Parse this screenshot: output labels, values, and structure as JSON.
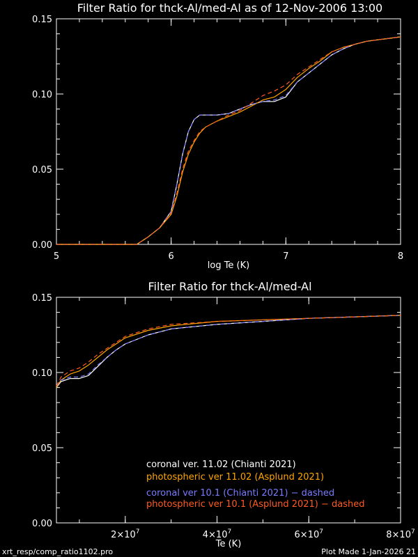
{
  "colors": {
    "background": "#000000",
    "axes": "#ffffff",
    "coronal_11": "#ffffff",
    "photospheric_11": "#ffa500",
    "coronal_10": "#7b7bff",
    "photospheric_10": "#ff5a1f"
  },
  "chart_data": [
    {
      "type": "line",
      "title": "Filter Ratio for thck-Al/med-Al as of 12-Nov-2006 13:00",
      "xlabel": "log Te (K)",
      "ylabel": "",
      "xlim": [
        5,
        8
      ],
      "ylim": [
        0,
        0.15
      ],
      "xticks": [
        "5",
        "6",
        "7",
        "8"
      ],
      "yticks": [
        "0.00",
        "0.05",
        "0.10",
        "0.15"
      ],
      "series": [
        {
          "name": "coronal ver. 11.02 (Chianti 2021)",
          "color": "#ffffff",
          "dashed": false,
          "x": [
            5.0,
            5.7,
            5.8,
            5.9,
            6.0,
            6.05,
            6.1,
            6.15,
            6.2,
            6.25,
            6.3,
            6.4,
            6.5,
            6.6,
            6.7,
            6.8,
            6.9,
            7.0,
            7.1,
            7.2,
            7.3,
            7.4,
            7.5,
            7.6,
            7.7,
            7.8,
            7.9,
            8.0
          ],
          "y": [
            0,
            0,
            0.005,
            0.011,
            0.022,
            0.04,
            0.06,
            0.075,
            0.083,
            0.086,
            0.086,
            0.086,
            0.087,
            0.09,
            0.093,
            0.095,
            0.095,
            0.098,
            0.108,
            0.114,
            0.12,
            0.126,
            0.13,
            0.133,
            0.135,
            0.136,
            0.137,
            0.138
          ]
        },
        {
          "name": "photospheric ver 11.02 (Asplund 2021)",
          "color": "#ffa500",
          "dashed": false,
          "x": [
            5.0,
            5.7,
            5.8,
            5.9,
            6.0,
            6.05,
            6.1,
            6.15,
            6.2,
            6.25,
            6.3,
            6.4,
            6.5,
            6.6,
            6.7,
            6.8,
            6.9,
            7.0,
            7.1,
            7.2,
            7.3,
            7.4,
            7.5,
            7.6,
            7.7,
            7.8,
            7.9,
            8.0
          ],
          "y": [
            0,
            0,
            0.005,
            0.011,
            0.02,
            0.032,
            0.048,
            0.06,
            0.068,
            0.074,
            0.078,
            0.082,
            0.085,
            0.088,
            0.092,
            0.096,
            0.098,
            0.103,
            0.111,
            0.117,
            0.122,
            0.128,
            0.131,
            0.133,
            0.135,
            0.136,
            0.137,
            0.138
          ]
        },
        {
          "name": "coronal ver 10.1 (Chianti 2021) − dashed",
          "color": "#7b7bff",
          "dashed": true,
          "x": [
            5.0,
            5.7,
            5.8,
            5.9,
            6.0,
            6.05,
            6.1,
            6.15,
            6.2,
            6.25,
            6.3,
            6.4,
            6.5,
            6.6,
            6.7,
            6.8,
            6.9,
            7.0,
            7.1,
            7.2,
            7.3,
            7.4,
            7.5,
            7.6,
            7.7,
            7.8,
            7.9,
            8.0
          ],
          "y": [
            0,
            0,
            0.005,
            0.011,
            0.022,
            0.04,
            0.06,
            0.075,
            0.083,
            0.086,
            0.086,
            0.086,
            0.087,
            0.09,
            0.093,
            0.095,
            0.096,
            0.099,
            0.108,
            0.114,
            0.12,
            0.126,
            0.13,
            0.133,
            0.135,
            0.136,
            0.137,
            0.138
          ]
        },
        {
          "name": "photospheric ver 10.1 (Asplund 2021) − dashed",
          "color": "#ff5a1f",
          "dashed": true,
          "x": [
            5.0,
            5.7,
            5.8,
            5.9,
            6.0,
            6.05,
            6.1,
            6.15,
            6.2,
            6.25,
            6.3,
            6.4,
            6.5,
            6.6,
            6.7,
            6.8,
            6.9,
            7.0,
            7.1,
            7.2,
            7.3,
            7.4,
            7.5,
            7.6,
            7.7,
            7.8,
            7.9,
            8.0
          ],
          "y": [
            0,
            0,
            0.005,
            0.011,
            0.021,
            0.034,
            0.05,
            0.062,
            0.069,
            0.075,
            0.078,
            0.082,
            0.086,
            0.089,
            0.094,
            0.099,
            0.102,
            0.106,
            0.113,
            0.118,
            0.123,
            0.128,
            0.131,
            0.133,
            0.135,
            0.136,
            0.137,
            0.138
          ]
        }
      ]
    },
    {
      "type": "line",
      "title": "Filter Ratio for thck-Al/med-Al",
      "xlabel": "Te (K)",
      "ylabel": "",
      "xlim": [
        5000000,
        80000000
      ],
      "ylim": [
        0,
        0.15
      ],
      "xticks": [
        {
          "value": 20000000,
          "mantissa": "2×10",
          "exp": "7"
        },
        {
          "value": 40000000,
          "mantissa": "4×10",
          "exp": "7"
        },
        {
          "value": 60000000,
          "mantissa": "6×10",
          "exp": "7"
        },
        {
          "value": 80000000,
          "mantissa": "8×10",
          "exp": "7"
        }
      ],
      "yticks": [
        "0.00",
        "0.05",
        "0.10",
        "0.15"
      ],
      "series": [
        {
          "name": "coronal ver. 11.02 (Chianti 2021)",
          "color": "#ffffff",
          "dashed": false,
          "x": [
            5000000,
            6000000,
            8000000,
            10000000,
            12000000,
            14000000,
            16000000,
            18000000,
            20000000,
            25000000,
            30000000,
            40000000,
            50000000,
            60000000,
            70000000,
            80000000
          ],
          "y": [
            0.09,
            0.094,
            0.096,
            0.096,
            0.098,
            0.104,
            0.11,
            0.115,
            0.119,
            0.125,
            0.129,
            0.132,
            0.134,
            0.136,
            0.137,
            0.138
          ]
        },
        {
          "name": "photospheric ver 11.02 (Asplund 2021)",
          "color": "#ffa500",
          "dashed": false,
          "x": [
            5000000,
            6000000,
            8000000,
            10000000,
            12000000,
            14000000,
            16000000,
            18000000,
            20000000,
            25000000,
            30000000,
            40000000,
            50000000,
            60000000,
            70000000,
            80000000
          ],
          "y": [
            0.09,
            0.095,
            0.099,
            0.101,
            0.105,
            0.11,
            0.115,
            0.119,
            0.123,
            0.128,
            0.131,
            0.134,
            0.135,
            0.136,
            0.137,
            0.138
          ]
        },
        {
          "name": "coronal ver 10.1 (Chianti 2021) − dashed",
          "color": "#7b7bff",
          "dashed": true,
          "x": [
            5000000,
            6000000,
            8000000,
            10000000,
            12000000,
            14000000,
            16000000,
            18000000,
            20000000,
            25000000,
            30000000,
            40000000,
            50000000,
            60000000,
            70000000,
            80000000
          ],
          "y": [
            0.091,
            0.095,
            0.097,
            0.097,
            0.099,
            0.105,
            0.11,
            0.115,
            0.119,
            0.125,
            0.129,
            0.132,
            0.134,
            0.136,
            0.137,
            0.138
          ]
        },
        {
          "name": "photospheric ver 10.1 (Asplund 2021) − dashed",
          "color": "#ff5a1f",
          "dashed": true,
          "x": [
            5000000,
            6000000,
            8000000,
            10000000,
            12000000,
            14000000,
            16000000,
            18000000,
            20000000,
            25000000,
            30000000,
            40000000,
            50000000,
            60000000,
            70000000,
            80000000
          ],
          "y": [
            0.091,
            0.097,
            0.101,
            0.103,
            0.107,
            0.112,
            0.116,
            0.12,
            0.124,
            0.129,
            0.132,
            0.134,
            0.135,
            0.136,
            0.137,
            0.138
          ]
        }
      ]
    }
  ],
  "footer": {
    "left": "xrt_resp/comp_ratio1102.pro",
    "right": "Plot Made  1-Jan-2026 21"
  }
}
